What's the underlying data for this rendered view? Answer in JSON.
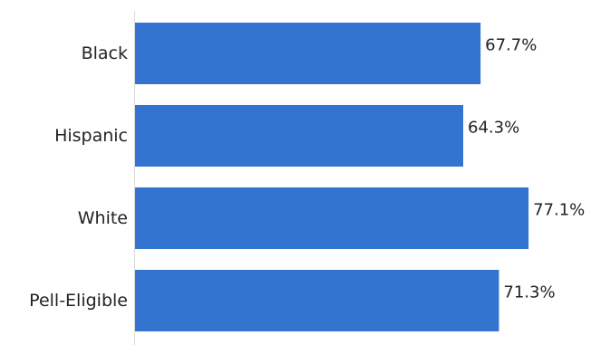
{
  "chart_data": {
    "type": "bar",
    "orientation": "horizontal",
    "categories": [
      "Black",
      "Hispanic",
      "White",
      "Pell-Eligible"
    ],
    "values": [
      67.7,
      64.3,
      77.1,
      71.3
    ],
    "value_labels": [
      "67.7%",
      "64.3%",
      "77.1%",
      "71.3%"
    ],
    "unit": "%",
    "title": "",
    "xlabel": "",
    "ylabel": "",
    "xlim": [
      0,
      87
    ],
    "grid": false,
    "legend": "none",
    "bar_color": "#3374d1",
    "axis_color": "#d9d9d9"
  }
}
